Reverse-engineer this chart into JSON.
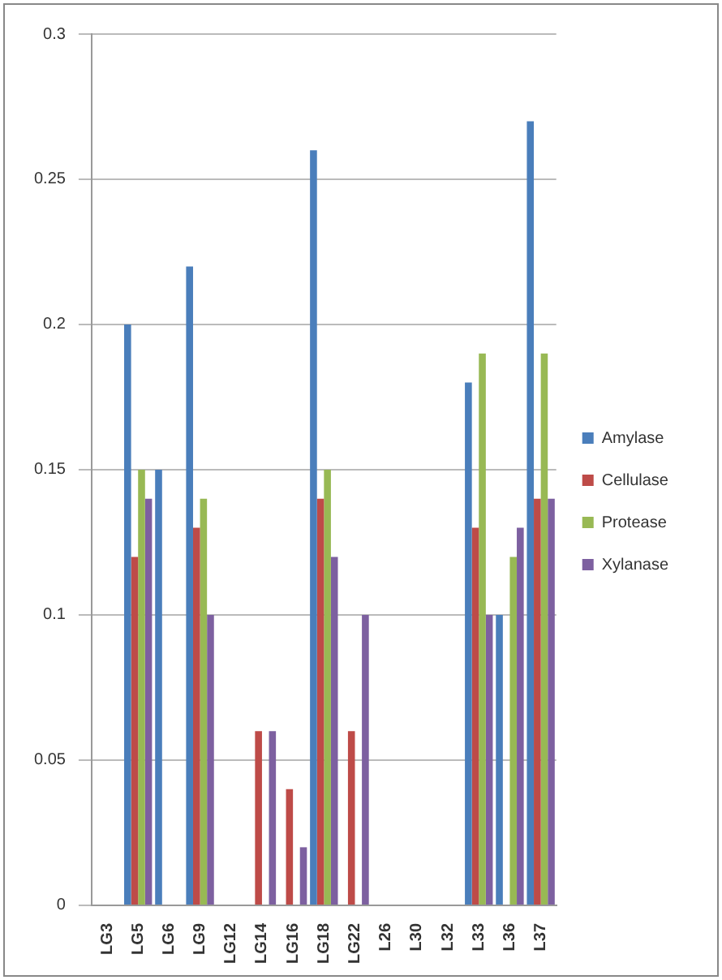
{
  "chart_data": {
    "type": "bar",
    "categories": [
      "LG3",
      "LG5",
      "LG6",
      "LG9",
      "LG12",
      "LG14",
      "LG16",
      "LG18",
      "LG22",
      "L26",
      "L30",
      "L32",
      "L33",
      "L36",
      "L37"
    ],
    "series": [
      {
        "name": "Amylase",
        "color": "#4a7ebb",
        "values": [
          null,
          0.2,
          0.15,
          0.22,
          null,
          null,
          null,
          0.26,
          null,
          null,
          null,
          null,
          0.18,
          0.1,
          0.27
        ]
      },
      {
        "name": "Cellulase",
        "color": "#be4b48",
        "values": [
          null,
          0.12,
          null,
          0.13,
          null,
          0.06,
          0.04,
          0.14,
          0.06,
          null,
          null,
          null,
          0.13,
          null,
          0.14
        ]
      },
      {
        "name": "Protease",
        "color": "#98b954",
        "values": [
          null,
          0.15,
          null,
          0.14,
          null,
          null,
          null,
          0.15,
          null,
          null,
          null,
          null,
          0.19,
          0.12,
          0.19
        ]
      },
      {
        "name": "Xylanase",
        "color": "#7d60a0",
        "values": [
          null,
          0.14,
          null,
          0.1,
          null,
          0.06,
          0.02,
          0.12,
          0.1,
          null,
          null,
          null,
          0.1,
          0.13,
          0.14
        ]
      }
    ],
    "ylim": [
      0,
      0.3
    ],
    "yticks": [
      0,
      0.05,
      0.1,
      0.15,
      0.2,
      0.25,
      0.3
    ],
    "grid": "y",
    "legend": "right"
  }
}
